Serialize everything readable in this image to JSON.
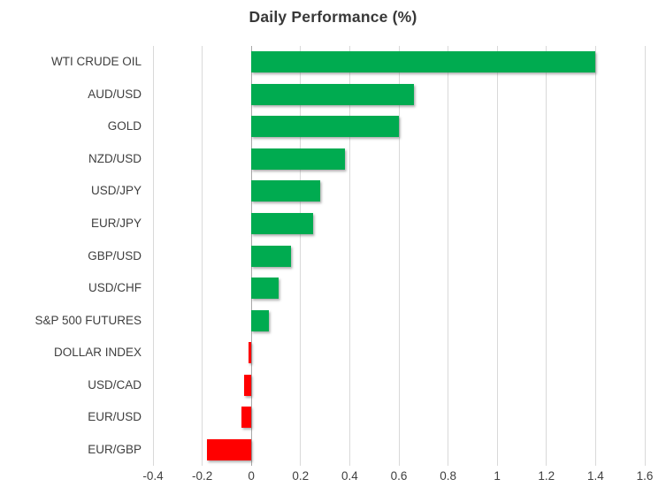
{
  "chart_data": {
    "type": "bar",
    "orientation": "horizontal",
    "title": "Daily Performance (%)",
    "categories": [
      "WTI CRUDE OIL",
      "AUD/USD",
      "GOLD",
      "NZD/USD",
      "USD/JPY",
      "EUR/JPY",
      "GBP/USD",
      "USD/CHF",
      "S&P 500 FUTURES",
      "DOLLAR INDEX",
      "USD/CAD",
      "EUR/USD",
      "EUR/GBP"
    ],
    "values": [
      1.4,
      0.66,
      0.6,
      0.38,
      0.28,
      0.25,
      0.16,
      0.11,
      0.07,
      -0.01,
      -0.03,
      -0.04,
      -0.18
    ],
    "xlim": [
      -0.4,
      1.6
    ],
    "xticks": [
      -0.4,
      -0.2,
      0,
      0.2,
      0.4,
      0.6,
      0.8,
      1,
      1.2,
      1.4,
      1.6
    ],
    "xtick_labels": [
      "-0.4",
      "-0.2",
      "0",
      "0.2",
      "0.4",
      "0.6",
      "0.8",
      "1",
      "1.2",
      "1.4",
      "1.6"
    ],
    "grid": true,
    "legend": false,
    "colors": {
      "positive": "#00AB50",
      "negative": "#FF0000",
      "gridline": "#D9D9D9",
      "zero_line": "#A8A8A8",
      "text": "#3F3F3F",
      "title": "#383838",
      "background": "#FFFFFF"
    }
  }
}
